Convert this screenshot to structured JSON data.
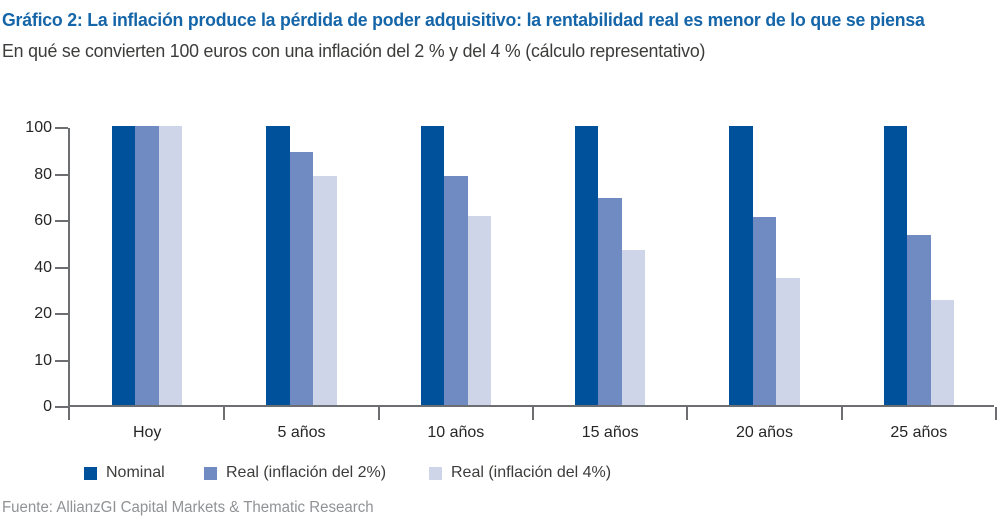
{
  "header": {
    "title": "Gráfico 2: La inflación produce la pérdida de poder adquisitivo: la rentabilidad real es menor de lo que se piensa",
    "subtitle": "En qué se convierten 100 euros con una inflación del 2 % y del 4 % (cálculo representativo)"
  },
  "footer": {
    "source": "Fuente: AllianzGI Capital Markets & Thematic Research"
  },
  "colors": {
    "title_blue": "#1565A9",
    "axis_gray": "#6D6E71",
    "text_dark": "#262626",
    "source_gray": "#909295",
    "series_nominal": "#00519B",
    "series_real2": "#6F8BC1",
    "series_real4": "#CED5E8"
  },
  "chart_data": {
    "type": "bar",
    "title": "Gráfico 2: La inflación produce la pérdida de poder adquisitivo: la rentabilidad real es menor de lo que se piensa",
    "subtitle": "En qué se convierten 100 euros con una inflación del 2 % y del 4 % (cálculo representativo)",
    "categories": [
      "Hoy",
      "5 años",
      "10 años",
      "15 años",
      "20 años",
      "25 años"
    ],
    "series": [
      {
        "name": "Nominal",
        "color": "#00519B",
        "values": [
          100,
          100,
          100,
          100,
          100,
          100
        ]
      },
      {
        "name": "Real (inflación del 2%)",
        "color": "#6F8BC1",
        "values": [
          100,
          90.6,
          82.0,
          74.3,
          67.3,
          61.0
        ]
      },
      {
        "name": "Real (inflación del 4%)",
        "color": "#CED5E8",
        "values": [
          100,
          82.2,
          67.6,
          55.5,
          45.6,
          37.5
        ]
      }
    ],
    "xlabel": "",
    "ylabel": "",
    "ylim": [
      0,
      100
    ],
    "y_tick_labels": [
      "100",
      "80",
      "60",
      "40",
      "20",
      "10",
      "0"
    ],
    "y_ticks_equally_spaced": true,
    "grid": false,
    "legend_position": "bottom"
  }
}
